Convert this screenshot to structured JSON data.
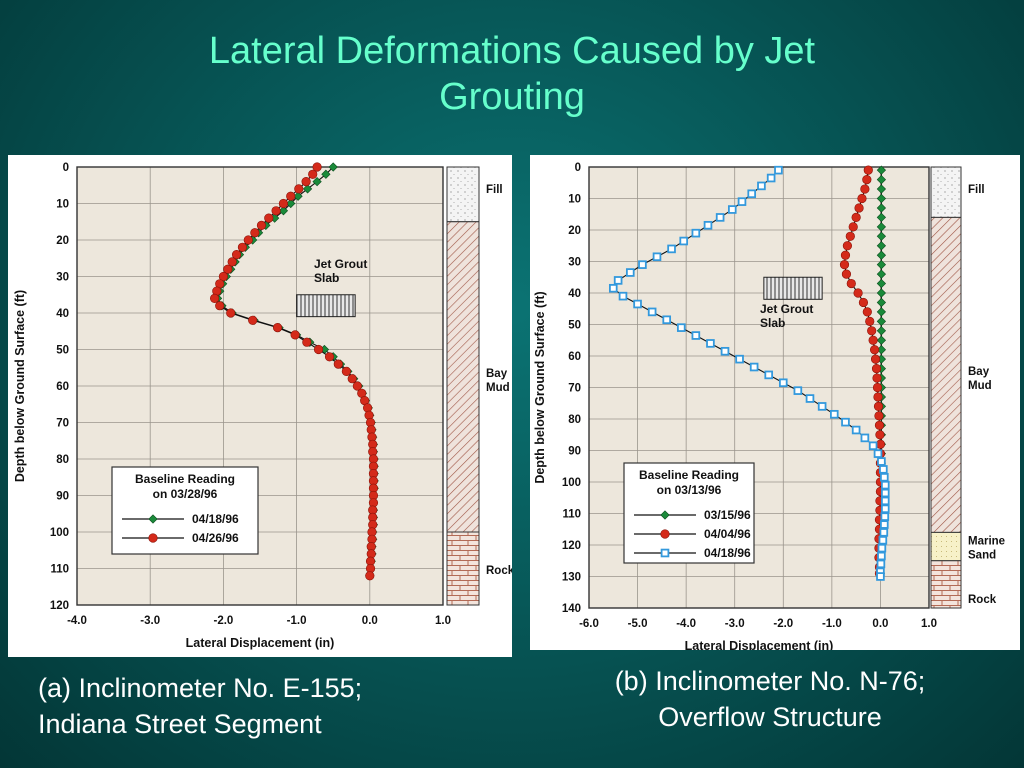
{
  "slide": {
    "title_line1": "Lateral Deformations Caused by Jet",
    "title_line2": "Grouting"
  },
  "colors": {
    "background": "#075858",
    "title": "#66ffcc",
    "plot_bg": "#ede7dc",
    "green": "#1a8a3a",
    "red": "#d42a1a",
    "blue": "#3399dd"
  },
  "captions": {
    "a_line1": "(a) Inclinometer No. E-155;",
    "a_line2": "Indiana Street Segment",
    "b_line1": "(b) Inclinometer No. N-76;",
    "b_line2": "Overflow Structure"
  },
  "chart_data": [
    {
      "type": "line",
      "xlabel": "Lateral Displacement (in)",
      "ylabel": "Depth below Ground Surface (ft)",
      "xlim": [
        -4.0,
        1.0
      ],
      "ylim": [
        0,
        120
      ],
      "xticks": [
        "-4.0",
        "-3.0",
        "-2.0",
        "-1.0",
        "0.0",
        "1.0"
      ],
      "yticks": [
        "0",
        "10",
        "20",
        "30",
        "40",
        "50",
        "60",
        "70",
        "80",
        "90",
        "100",
        "110",
        "120"
      ],
      "grid": true,
      "legend": {
        "title_line1": "Baseline Reading",
        "title_line2": "on 03/28/96",
        "position": "lower-left"
      },
      "annotation": {
        "line1": "Jet Grout",
        "line2": "Slab",
        "depth_range": [
          35,
          41
        ],
        "x_range": [
          -1.0,
          -0.2
        ]
      },
      "strata": [
        {
          "name": "Fill",
          "top": 0,
          "bottom": 15
        },
        {
          "name": "Bay",
          "name2": "Mud",
          "top": 15,
          "bottom": 100
        },
        {
          "name": "Rock",
          "top": 100,
          "bottom": 120
        }
      ],
      "series": [
        {
          "name": "04/18/96",
          "marker": "diamond",
          "color": "#1a8a3a",
          "depth": [
            0,
            2,
            4,
            6,
            8,
            10,
            12,
            14,
            16,
            18,
            20,
            22,
            24,
            26,
            28,
            30,
            32,
            34,
            36,
            38,
            40,
            42,
            44,
            46,
            48,
            50,
            52,
            54,
            56,
            58,
            60,
            62,
            64,
            66,
            68,
            70,
            72,
            74,
            76,
            78,
            80,
            82,
            84,
            86,
            88,
            90,
            92,
            94,
            96,
            98,
            100,
            102,
            104,
            106,
            108,
            110,
            112
          ],
          "values": [
            -0.5,
            -0.6,
            -0.72,
            -0.85,
            -0.98,
            -1.08,
            -1.18,
            -1.3,
            -1.42,
            -1.52,
            -1.6,
            -1.7,
            -1.78,
            -1.84,
            -1.9,
            -1.96,
            -2.01,
            -2.05,
            -2.08,
            -2.02,
            -1.88,
            -1.58,
            -1.24,
            -1.0,
            -0.82,
            -0.62,
            -0.5,
            -0.4,
            -0.3,
            -0.22,
            -0.15,
            -0.1,
            -0.06,
            -0.02,
            0.0,
            0.02,
            0.03,
            0.04,
            0.05,
            0.05,
            0.06,
            0.06,
            0.06,
            0.06,
            0.06,
            0.05,
            0.05,
            0.05,
            0.05,
            0.05,
            0.04,
            0.04,
            0.03,
            0.03,
            0.02,
            0.01,
            0.0
          ]
        },
        {
          "name": "04/26/96",
          "marker": "circle",
          "color": "#d42a1a",
          "depth": [
            0,
            2,
            4,
            6,
            8,
            10,
            12,
            14,
            16,
            18,
            20,
            22,
            24,
            26,
            28,
            30,
            32,
            34,
            36,
            38,
            40,
            42,
            44,
            46,
            48,
            50,
            52,
            54,
            56,
            58,
            60,
            62,
            64,
            66,
            68,
            70,
            72,
            74,
            76,
            78,
            80,
            82,
            84,
            86,
            88,
            90,
            92,
            94,
            96,
            98,
            100,
            102,
            104,
            106,
            108,
            110,
            112
          ],
          "values": [
            -0.72,
            -0.78,
            -0.87,
            -0.97,
            -1.08,
            -1.18,
            -1.28,
            -1.38,
            -1.48,
            -1.57,
            -1.66,
            -1.74,
            -1.82,
            -1.88,
            -1.94,
            -2.0,
            -2.05,
            -2.09,
            -2.12,
            -2.05,
            -1.9,
            -1.6,
            -1.26,
            -1.02,
            -0.86,
            -0.7,
            -0.55,
            -0.43,
            -0.32,
            -0.24,
            -0.17,
            -0.11,
            -0.07,
            -0.03,
            -0.01,
            0.01,
            0.02,
            0.03,
            0.04,
            0.04,
            0.05,
            0.05,
            0.05,
            0.05,
            0.05,
            0.05,
            0.05,
            0.04,
            0.04,
            0.04,
            0.03,
            0.03,
            0.02,
            0.02,
            0.01,
            0.01,
            0.0
          ]
        }
      ]
    },
    {
      "type": "line",
      "xlabel": "Lateral Displacement (in)",
      "ylabel": "Depth below Ground Surface (ft)",
      "xlim": [
        -6.0,
        1.0
      ],
      "ylim": [
        0,
        140
      ],
      "xticks": [
        "-6.0",
        "-5.0",
        "-4.0",
        "-3.0",
        "-2.0",
        "-1.0",
        "0.0",
        "1.0"
      ],
      "yticks": [
        "0",
        "10",
        "20",
        "30",
        "40",
        "50",
        "60",
        "70",
        "80",
        "90",
        "100",
        "110",
        "120",
        "130",
        "140"
      ],
      "grid": true,
      "legend": {
        "title_line1": "Baseline Reading",
        "title_line2": "on 03/13/96",
        "position": "lower-left"
      },
      "annotation": {
        "line1": "Jet Grout",
        "line2": "Slab",
        "depth_range": [
          35,
          42
        ],
        "x_range": [
          -2.4,
          -1.2
        ]
      },
      "strata": [
        {
          "name": "Fill",
          "top": 0,
          "bottom": 16
        },
        {
          "name": "Bay",
          "name2": "Mud",
          "top": 16,
          "bottom": 116
        },
        {
          "name": "Marine",
          "name2": "Sand",
          "top": 116,
          "bottom": 125
        },
        {
          "name": "Rock",
          "top": 125,
          "bottom": 140
        }
      ],
      "series": [
        {
          "name": "03/15/96",
          "marker": "diamond",
          "color": "#1a8a3a",
          "depth": [
            1,
            4,
            7,
            10,
            13,
            16,
            19,
            22,
            25,
            28,
            31,
            34,
            37,
            40,
            43,
            46,
            49,
            52,
            55,
            58,
            61,
            64,
            67,
            70,
            73,
            76,
            79,
            82,
            85,
            88,
            91,
            94,
            97,
            100,
            103,
            106,
            109,
            112,
            115,
            118,
            121,
            124,
            127,
            129
          ],
          "values": [
            0.02,
            0.02,
            0.02,
            0.02,
            0.02,
            0.02,
            0.02,
            0.02,
            0.02,
            0.02,
            0.02,
            0.02,
            0.02,
            0.02,
            0.02,
            0.02,
            0.02,
            0.02,
            0.02,
            0.02,
            0.02,
            0.02,
            0.02,
            0.02,
            0.02,
            0.02,
            0.02,
            0.02,
            0.02,
            0.02,
            0.02,
            0.02,
            0.02,
            0.02,
            0.02,
            0.02,
            0.02,
            0.02,
            0.02,
            0.02,
            0.02,
            0.01,
            0.0,
            0.0
          ]
        },
        {
          "name": "04/04/96",
          "marker": "circle",
          "color": "#d42a1a",
          "depth": [
            1,
            4,
            7,
            10,
            13,
            16,
            19,
            22,
            25,
            28,
            31,
            34,
            37,
            40,
            43,
            46,
            49,
            52,
            55,
            58,
            61,
            64,
            67,
            70,
            73,
            76,
            79,
            82,
            85,
            88,
            91,
            94,
            97,
            100,
            103,
            106,
            109,
            112,
            115,
            118,
            121,
            124,
            127,
            129
          ],
          "values": [
            -0.25,
            -0.28,
            -0.32,
            -0.38,
            -0.44,
            -0.5,
            -0.56,
            -0.62,
            -0.68,
            -0.72,
            -0.74,
            -0.7,
            -0.6,
            -0.46,
            -0.35,
            -0.27,
            -0.22,
            -0.18,
            -0.15,
            -0.12,
            -0.1,
            -0.08,
            -0.07,
            -0.06,
            -0.05,
            -0.04,
            -0.03,
            -0.02,
            -0.01,
            0.0,
            0.0,
            0.0,
            0.0,
            0.0,
            0.0,
            -0.01,
            -0.01,
            -0.02,
            -0.02,
            -0.03,
            -0.03,
            -0.03,
            -0.02,
            -0.02
          ]
        },
        {
          "name": "04/18/96",
          "marker": "square",
          "color": "#3399dd",
          "depth": [
            1,
            3.5,
            6,
            8.5,
            11,
            13.5,
            16,
            18.5,
            21,
            23.5,
            26,
            28.5,
            31,
            33.5,
            36,
            38.5,
            41,
            43.5,
            46,
            48.5,
            51,
            53.5,
            56,
            58.5,
            61,
            63.5,
            66,
            68.5,
            71,
            73.5,
            76,
            78.5,
            81,
            83.5,
            86,
            88.5,
            91,
            93.5,
            96,
            98.5,
            101,
            103.5,
            106,
            108.5,
            111,
            113.5,
            116,
            118.5,
            121,
            123.5,
            126,
            128.5,
            130
          ],
          "values": [
            -2.1,
            -2.25,
            -2.45,
            -2.65,
            -2.85,
            -3.05,
            -3.3,
            -3.55,
            -3.8,
            -4.05,
            -4.3,
            -4.6,
            -4.9,
            -5.15,
            -5.4,
            -5.5,
            -5.3,
            -5.0,
            -4.7,
            -4.4,
            -4.1,
            -3.8,
            -3.5,
            -3.2,
            -2.9,
            -2.6,
            -2.3,
            -2.0,
            -1.7,
            -1.45,
            -1.2,
            -0.95,
            -0.72,
            -0.5,
            -0.32,
            -0.15,
            -0.05,
            0.02,
            0.06,
            0.08,
            0.1,
            0.1,
            0.1,
            0.1,
            0.09,
            0.08,
            0.07,
            0.05,
            0.03,
            0.02,
            0.01,
            0.0,
            0.0
          ]
        }
      ]
    }
  ]
}
